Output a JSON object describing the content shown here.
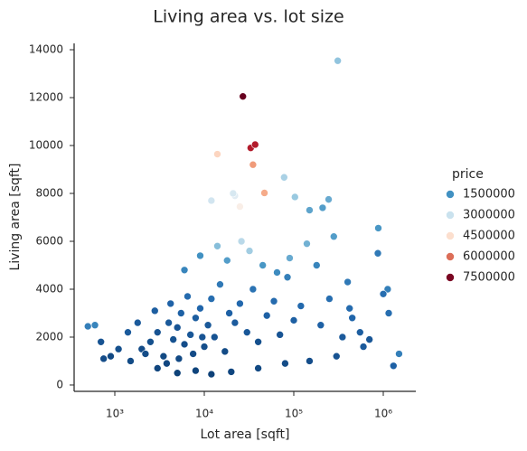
{
  "chart_data": {
    "type": "scatter",
    "title": "Living area vs. lot size",
    "xlabel": "Lot area [sqft]",
    "ylabel": "Living area [sqft]",
    "log_x": true,
    "xlim": [
      351,
      2310000
    ],
    "xticks": [
      {
        "value": 1000,
        "label": "10³"
      },
      {
        "value": 10000,
        "label": "10⁴"
      },
      {
        "value": 100000,
        "label": "10⁵"
      },
      {
        "value": 1000000,
        "label": "10⁶"
      }
    ],
    "ylim": [
      -265,
      14265
    ],
    "yticks": [
      0,
      2000,
      4000,
      6000,
      8000,
      10000,
      12000,
      14000
    ],
    "grid": false,
    "legend_title": "price",
    "legend_position": "right",
    "hue_lim": [
      0,
      7700000
    ],
    "colormap": [
      "#053061",
      "#2166ac",
      "#4393c3",
      "#92c5de",
      "#d1e5f0",
      "#f7f7f7",
      "#fddbc7",
      "#f4a582",
      "#d6604d",
      "#b2182b",
      "#67001f"
    ],
    "legend": [
      1500000,
      3000000,
      4500000,
      6000000,
      7500000
    ],
    "x": [
      600,
      1300000,
      1150000,
      1500000,
      870000,
      700,
      750,
      900,
      1100,
      1400,
      2000,
      2500,
      3000,
      3500,
      4000,
      4500,
      5000,
      5500,
      6000,
      7000,
      8000,
      9000,
      10000,
      11000,
      12000,
      13000,
      15000,
      17000,
      19000,
      22000,
      25000,
      30000,
      35000,
      40000,
      50000,
      60000,
      70000,
      85000,
      100000,
      120000,
      3000,
      5000,
      8000,
      12000,
      20000,
      40000,
      80000,
      150000,
      300000,
      600000,
      6000,
      9000,
      14000,
      18000,
      26000,
      32000,
      45000,
      65000,
      90000,
      140000,
      200000,
      250000,
      350000,
      400000,
      450000,
      550000,
      700000,
      180000,
      280000,
      420000,
      1500,
      1800,
      2200,
      2800,
      3800,
      4200,
      5200,
      6500,
      7500,
      9500,
      12000,
      22000,
      103000,
      150000,
      210000,
      245000,
      880000,
      1120000,
      1000000,
      500,
      310000,
      27000,
      33000,
      37000,
      35000,
      14000,
      47000,
      78000,
      21000,
      25000
    ],
    "values": [
      2500,
      800,
      3000,
      1300,
      5500,
      1800,
      1100,
      1200,
      1500,
      2200,
      1500,
      1800,
      2200,
      1200,
      2600,
      1900,
      2400,
      3000,
      1700,
      2100,
      2800,
      3200,
      1600,
      2500,
      3600,
      2000,
      4200,
      1400,
      3000,
      2600,
      3400,
      2200,
      4000,
      1800,
      2900,
      3500,
      2100,
      4500,
      2700,
      3300,
      700,
      500,
      600,
      450,
      550,
      700,
      900,
      1000,
      1200,
      1600,
      4800,
      5400,
      5800,
      5200,
      6000,
      5600,
      5000,
      4700,
      5300,
      5900,
      2500,
      3600,
      2000,
      4300,
      2800,
      2200,
      1900,
      5000,
      6200,
      3200,
      1000,
      2600,
      1300,
      3100,
      900,
      3400,
      1100,
      3700,
      1300,
      2000,
      7700,
      7900,
      7850,
      7300,
      7400,
      7750,
      6550,
      4000,
      3800,
      2450,
      13540,
      12050,
      9900,
      10040,
      9200,
      9640,
      8020,
      8670,
      8000,
      7450
    ],
    "hue": [
      1300000,
      700000,
      900000,
      1200000,
      1100000,
      500000,
      400000,
      350000,
      450000,
      600000,
      400000,
      450000,
      500000,
      350000,
      600000,
      480000,
      520000,
      700000,
      420000,
      550000,
      650000,
      750000,
      430000,
      580000,
      900000,
      500000,
      1100000,
      380000,
      700000,
      620000,
      800000,
      560000,
      1000000,
      450000,
      700000,
      850000,
      520000,
      1200000,
      680000,
      820000,
      300000,
      250000,
      280000,
      240000,
      310000,
      350000,
      400000,
      420000,
      500000,
      600000,
      1300000,
      1500000,
      2200000,
      1700000,
      2800000,
      2500000,
      1600000,
      1400000,
      1900000,
      2000000,
      700000,
      900000,
      600000,
      1100000,
      750000,
      650000,
      550000,
      1300000,
      1700000,
      850000,
      380000,
      600000,
      400000,
      650000,
      330000,
      720000,
      360000,
      850000,
      390000,
      520000,
      3100000,
      3400000,
      2400000,
      1800000,
      1700000,
      1900000,
      1600000,
      1200000,
      900000,
      1200000,
      2300000,
      7700000,
      6900000,
      6900000,
      5500000,
      4700000,
      5300000,
      2600000,
      3200000,
      4100000
    ]
  }
}
